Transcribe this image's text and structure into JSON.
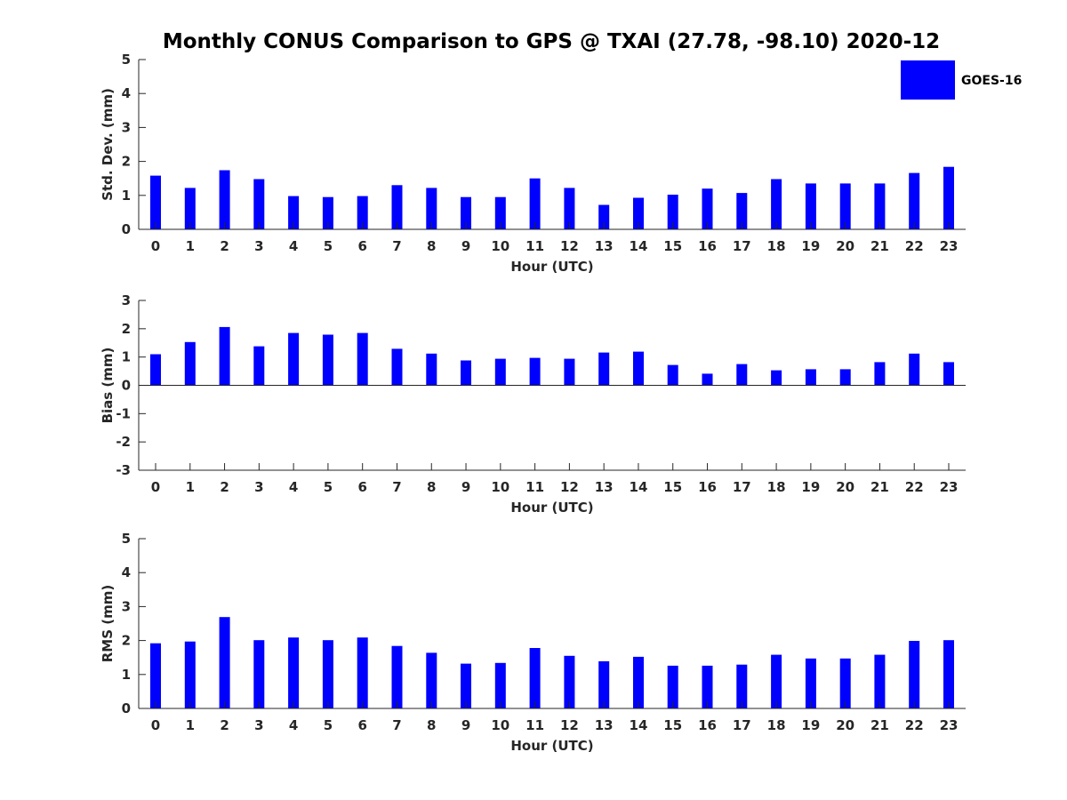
{
  "title": "Monthly CONUS Comparison to GPS @ TXAI (27.78, -98.10) 2020-12",
  "colors": {
    "bar": "#0000ff",
    "axis": "#262626",
    "background": "#ffffff"
  },
  "chart_data": [
    {
      "type": "bar",
      "categories": [
        "0",
        "1",
        "2",
        "3",
        "4",
        "5",
        "6",
        "7",
        "8",
        "9",
        "10",
        "11",
        "12",
        "13",
        "14",
        "15",
        "16",
        "17",
        "18",
        "19",
        "20",
        "21",
        "22",
        "23"
      ],
      "series": [
        {
          "name": "GOES-16",
          "values": [
            1.58,
            1.22,
            1.74,
            1.48,
            0.98,
            0.95,
            0.98,
            1.3,
            1.22,
            0.95,
            0.95,
            1.5,
            1.22,
            0.72,
            0.93,
            1.02,
            1.2,
            1.07,
            1.48,
            1.35,
            1.35,
            1.35,
            1.66,
            1.84
          ]
        }
      ],
      "xlabel": "Hour (UTC)",
      "ylabel": "Std. Dev. (mm)",
      "ylim": [
        0,
        5
      ],
      "yticks": [
        "0",
        "1",
        "2",
        "3",
        "4",
        "5"
      ],
      "legend": {
        "placement": "top-right",
        "entries": [
          "GOES-16"
        ]
      },
      "grid": false
    },
    {
      "type": "bar",
      "categories": [
        "0",
        "1",
        "2",
        "3",
        "4",
        "5",
        "6",
        "7",
        "8",
        "9",
        "10",
        "11",
        "12",
        "13",
        "14",
        "15",
        "16",
        "17",
        "18",
        "19",
        "20",
        "21",
        "22",
        "23"
      ],
      "series": [
        {
          "name": "GOES-16",
          "values": [
            1.1,
            1.53,
            2.06,
            1.38,
            1.85,
            1.79,
            1.85,
            1.29,
            1.12,
            0.88,
            0.94,
            0.97,
            0.94,
            1.16,
            1.19,
            0.72,
            0.41,
            0.75,
            0.53,
            0.57,
            0.57,
            0.82,
            1.12,
            0.82
          ]
        }
      ],
      "xlabel": "Hour (UTC)",
      "ylabel": "Bias (mm)",
      "ylim": [
        -3,
        3
      ],
      "yticks": [
        "-3",
        "-2",
        "-1",
        "0",
        "1",
        "2",
        "3"
      ],
      "grid": false
    },
    {
      "type": "bar",
      "categories": [
        "0",
        "1",
        "2",
        "3",
        "4",
        "5",
        "6",
        "7",
        "8",
        "9",
        "10",
        "11",
        "12",
        "13",
        "14",
        "15",
        "16",
        "17",
        "18",
        "19",
        "20",
        "21",
        "22",
        "23"
      ],
      "series": [
        {
          "name": "GOES-16",
          "values": [
            1.92,
            1.97,
            2.69,
            2.01,
            2.09,
            2.01,
            2.09,
            1.84,
            1.64,
            1.32,
            1.34,
            1.78,
            1.55,
            1.39,
            1.52,
            1.26,
            1.26,
            1.29,
            1.58,
            1.47,
            1.47,
            1.58,
            1.99,
            2.01
          ]
        }
      ],
      "xlabel": "Hour (UTC)",
      "ylabel": "RMS (mm)",
      "ylim": [
        0,
        5
      ],
      "yticks": [
        "0",
        "1",
        "2",
        "3",
        "4",
        "5"
      ],
      "grid": false
    }
  ]
}
